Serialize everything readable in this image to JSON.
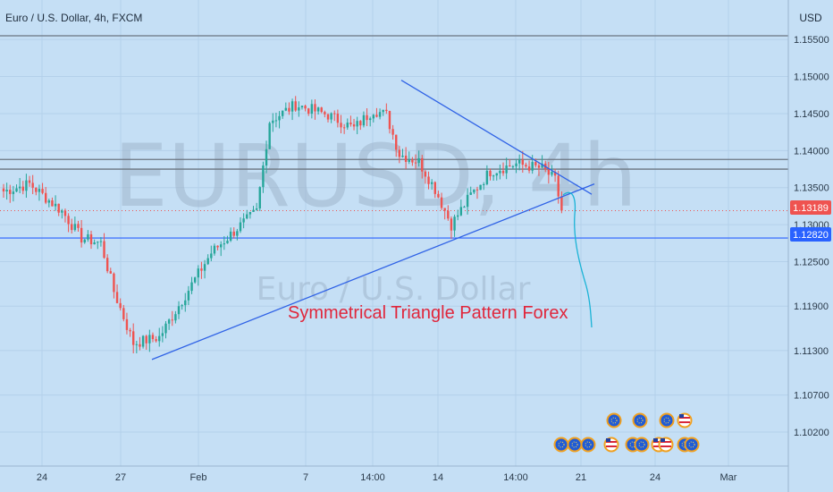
{
  "header": {
    "symbol_line": "Euro / U.S. Dollar, 4h, FXCM",
    "currency": "USD"
  },
  "watermark": {
    "ticker": "EURUSD, 4h",
    "name": "Euro / U.S. Dollar"
  },
  "annotation": {
    "text": "Symmetrical Triangle Pattern Forex"
  },
  "price_tags": {
    "last": "1.13189",
    "line": "1.12820"
  },
  "colors": {
    "background": "#c5dff5",
    "bull": "#26a69a",
    "bear": "#ef5350",
    "trendline": "#2f62e6",
    "curve": "#1ab3d6",
    "annotation": "#e0263b",
    "last_tag": "#ef5350",
    "line_tag": "#2962ff"
  },
  "chart_data": {
    "type": "candlestick",
    "title": "Euro / U.S. Dollar, 4h, FXCM",
    "y_unit": "USD",
    "ylim": [
      1.0965,
      1.1605
    ],
    "y_ticks": [
      "1.15500",
      "1.15000",
      "1.14500",
      "1.14000",
      "1.13500",
      "1.13000",
      "1.12500",
      "1.11900",
      "1.11300",
      "1.10700",
      "1.10200"
    ],
    "x_ticks": [
      "24",
      "27",
      "Feb",
      "7",
      "14:00",
      "14",
      "14:00",
      "21",
      "24",
      "Mar"
    ],
    "last_price": 1.13189,
    "horizontal_lines": [
      1.1555,
      1.1388,
      1.1375,
      1.1282
    ],
    "trendlines": [
      {
        "name": "upper",
        "from": [
          449,
          1.1495
        ],
        "to": [
          662,
          1.1341
        ]
      },
      {
        "name": "lower",
        "from": [
          170,
          1.1118
        ],
        "to": [
          665,
          1.1355
        ]
      }
    ],
    "anchors": [
      {
        "bar": 0,
        "price": 1.1345
      },
      {
        "bar": 8,
        "price": 1.1355
      },
      {
        "bar": 18,
        "price": 1.1318
      },
      {
        "bar": 24,
        "price": 1.1282
      },
      {
        "bar": 30,
        "price": 1.1275
      },
      {
        "bar": 34,
        "price": 1.121
      },
      {
        "bar": 40,
        "price": 1.114
      },
      {
        "bar": 48,
        "price": 1.1148
      },
      {
        "bar": 56,
        "price": 1.1205
      },
      {
        "bar": 64,
        "price": 1.1262
      },
      {
        "bar": 72,
        "price": 1.1295
      },
      {
        "bar": 78,
        "price": 1.1318
      },
      {
        "bar": 82,
        "price": 1.144
      },
      {
        "bar": 90,
        "price": 1.1462
      },
      {
        "bar": 100,
        "price": 1.1448
      },
      {
        "bar": 108,
        "price": 1.143
      },
      {
        "bar": 114,
        "price": 1.1455
      },
      {
        "bar": 118,
        "price": 1.1448
      },
      {
        "bar": 122,
        "price": 1.1395
      },
      {
        "bar": 128,
        "price": 1.1385
      },
      {
        "bar": 133,
        "price": 1.1348
      },
      {
        "bar": 138,
        "price": 1.13
      },
      {
        "bar": 144,
        "price": 1.134
      },
      {
        "bar": 150,
        "price": 1.1372
      },
      {
        "bar": 158,
        "price": 1.1382
      },
      {
        "bar": 166,
        "price": 1.1376
      },
      {
        "bar": 170,
        "price": 1.136
      },
      {
        "bar": 172,
        "price": 1.1319
      }
    ]
  }
}
